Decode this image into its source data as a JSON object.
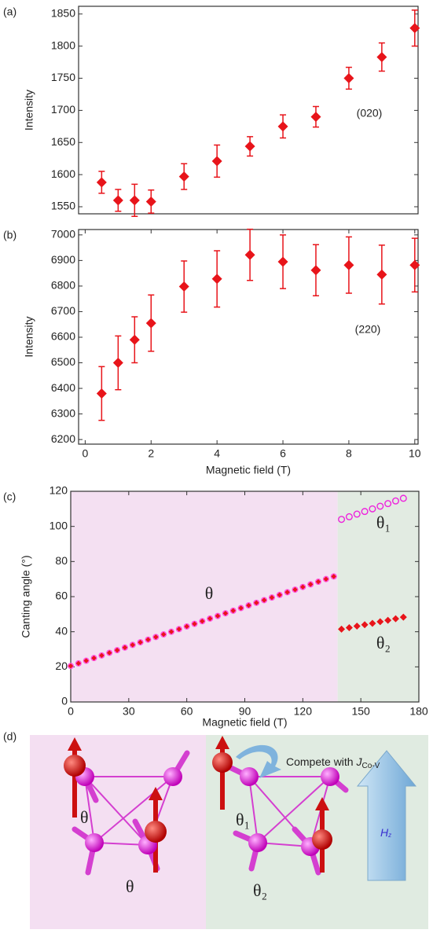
{
  "chart_data": [
    {
      "type": "scatter",
      "panel_label": "(a)",
      "y_label": "Intensity",
      "annotation": "(020)",
      "x": [
        0.5,
        1,
        1.5,
        2,
        3,
        4,
        5,
        6,
        7,
        8,
        9,
        10
      ],
      "values": [
        1588,
        1560,
        1560,
        1558,
        1597,
        1621,
        1644,
        1675,
        1690,
        1750,
        1783,
        1828
      ],
      "errors": [
        17,
        17,
        25,
        18,
        20,
        25,
        15,
        18,
        16,
        17,
        22,
        28
      ],
      "color": "#e8141a",
      "xlim": [
        -0.2,
        10.1
      ],
      "ylim": [
        1539,
        1862
      ],
      "yticks": [
        1550,
        1600,
        1650,
        1700,
        1750,
        1800,
        1850
      ]
    },
    {
      "type": "scatter",
      "panel_label": "(b)",
      "y_label": "Intensity",
      "x_label": "Magnetic field (T)",
      "annotation": "(220)",
      "x": [
        0.5,
        1,
        1.5,
        2,
        3,
        4,
        5,
        6,
        7,
        8,
        9,
        10
      ],
      "values": [
        6380,
        6500,
        6590,
        6655,
        6798,
        6828,
        6922,
        6895,
        6862,
        6882,
        6845,
        6882
      ],
      "errors": [
        105,
        105,
        90,
        110,
        100,
        110,
        100,
        105,
        100,
        110,
        115,
        105
      ],
      "color": "#e8141a",
      "xlim": [
        -0.2,
        10.1
      ],
      "ylim": [
        6182,
        7021
      ],
      "xticks": [
        0,
        2,
        4,
        6,
        8,
        10
      ],
      "yticks": [
        6200,
        6300,
        6400,
        6500,
        6600,
        6700,
        6800,
        6900,
        7000
      ]
    },
    {
      "type": "scatter",
      "panel_label": "(c)",
      "y_label": "Canting angle (°)",
      "x_label": "Magnetic field (T)",
      "xlim": [
        0,
        180
      ],
      "ylim": [
        0,
        120
      ],
      "xticks": [
        0,
        30,
        60,
        90,
        120,
        150,
        180
      ],
      "yticks": [
        0,
        20,
        40,
        60,
        80,
        100,
        120
      ],
      "regions": [
        {
          "span": [
            0,
            138
          ],
          "color": "#f4e0f2"
        },
        {
          "span": [
            138,
            180
          ],
          "color": "#e2ebe2"
        }
      ],
      "series": [
        {
          "name": "θ",
          "color": "#e8141a",
          "marker": "diamond-circle",
          "x": [
            0,
            4,
            8,
            12,
            16,
            20,
            24,
            28,
            32,
            36,
            40,
            44,
            48,
            52,
            56,
            60,
            64,
            68,
            72,
            76,
            80,
            84,
            88,
            92,
            96,
            100,
            104,
            108,
            112,
            116,
            120,
            124,
            128,
            132,
            136
          ],
          "values": [
            20.5,
            22,
            23.5,
            25,
            26.5,
            28,
            29.5,
            31,
            32.5,
            34,
            35.5,
            37,
            38.5,
            40,
            41.5,
            43,
            44.5,
            46,
            47.5,
            49,
            50.5,
            52,
            53.5,
            55,
            56.5,
            58,
            59.5,
            61,
            62.5,
            64,
            65.5,
            67,
            68.5,
            70,
            71.5
          ]
        },
        {
          "name": "θ₁",
          "color": "#ee22dd",
          "marker": "open-circle",
          "x": [
            140,
            144,
            148,
            152,
            156,
            160,
            164,
            168,
            172
          ],
          "values": [
            104,
            105.5,
            107,
            108.5,
            110,
            111.5,
            113,
            114.5,
            116
          ]
        },
        {
          "name": "θ₂",
          "color": "#e8141a",
          "marker": "diamond",
          "x": [
            140,
            144,
            148,
            152,
            156,
            160,
            164,
            168,
            172
          ],
          "values": [
            41.5,
            42.3,
            43.2,
            44,
            44.8,
            45.7,
            46.5,
            47.4,
            48.3
          ]
        }
      ]
    }
  ],
  "diagram": {
    "panel_label": "(d)",
    "left_labels": [
      "θ",
      "θ"
    ],
    "right_labels": [
      "θ₁",
      "θ₂"
    ],
    "note": "Compete with ",
    "note_symbol": "J",
    "note_sub": "Co-V",
    "field_symbol": "H",
    "field_sub": "z"
  }
}
